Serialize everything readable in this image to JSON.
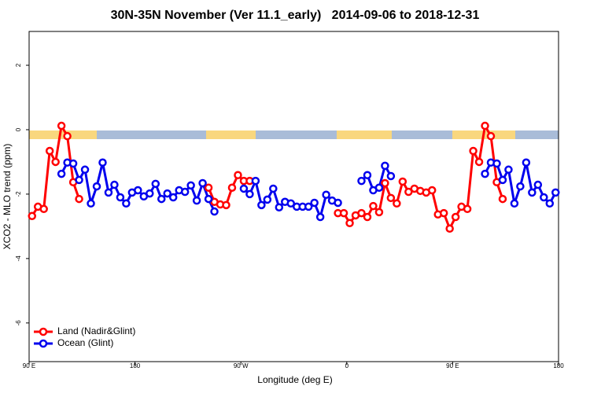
{
  "chart_data": {
    "type": "line",
    "title": "30N-35N November (Ver 11.1_early)   2014-09-06 to 2018-12-31",
    "xlabel": "Longitude (deg E)",
    "ylabel": "XCO2 - MLO trend (ppm)",
    "x": [
      92.5,
      97.5,
      102.5,
      107.5,
      112.5,
      117.5,
      122.5,
      127.5,
      132.5,
      137.5,
      142.5,
      147.5,
      152.5,
      157.5,
      162.5,
      167.5,
      172.5,
      177.5,
      182.5,
      187.5,
      192.5,
      197.5,
      202.5,
      207.5,
      212.5,
      217.5,
      222.5,
      227.5,
      232.5,
      237.5,
      242.5,
      247.5,
      252.5,
      257.5,
      262.5,
      267.5,
      272.5,
      277.5,
      282.5,
      287.5,
      292.5,
      297.5,
      302.5,
      307.5,
      312.5,
      317.5,
      322.5,
      327.5,
      332.5,
      337.5,
      342.5,
      347.5,
      352.5,
      357.5,
      362.5,
      367.5,
      372.5,
      377.5,
      382.5,
      387.5,
      392.5,
      397.5,
      402.5,
      407.5,
      412.5,
      417.5,
      422.5,
      427.5,
      432.5,
      437.5,
      442.5,
      447.5,
      452.5,
      457.5,
      462.5,
      467.5,
      472.5,
      477.5,
      482.5,
      487.5,
      492.5,
      497.5,
      502.5,
      507.5,
      512.5,
      517.5,
      522.5,
      527.5,
      532.5,
      537.5
    ],
    "series": [
      {
        "name": "Land (Nadir&Glint)",
        "color": "#ff0000",
        "values": [
          -2.68,
          -2.39,
          -2.46,
          -0.66,
          -1.0,
          0.12,
          -0.2,
          -1.63,
          -2.15,
          null,
          null,
          null,
          null,
          null,
          null,
          null,
          null,
          null,
          null,
          null,
          null,
          null,
          null,
          null,
          null,
          null,
          null,
          null,
          null,
          null,
          -1.8,
          -2.24,
          -2.32,
          -2.34,
          -1.8,
          -1.41,
          -1.59,
          -1.59,
          null,
          null,
          null,
          null,
          null,
          null,
          null,
          null,
          null,
          null,
          null,
          null,
          null,
          null,
          -2.59,
          -2.59,
          -2.9,
          -2.66,
          -2.59,
          -2.71,
          -2.37,
          -2.56,
          -1.66,
          -2.12,
          -2.29,
          -1.61,
          -1.93,
          -1.83,
          -1.9,
          -1.95,
          -1.88,
          -2.63,
          -2.59,
          -3.07,
          -2.71,
          -2.39,
          -2.46,
          -0.66,
          -1.0,
          0.12,
          -0.2,
          -1.63,
          -2.15,
          null,
          null,
          null,
          null,
          null,
          null,
          null,
          null,
          null
        ]
      },
      {
        "name": "Ocean (Glint)",
        "color": "#0000ee",
        "values": [
          null,
          null,
          null,
          null,
          null,
          -1.37,
          -1.02,
          -1.05,
          -1.56,
          -1.24,
          -2.29,
          -1.76,
          -1.02,
          -1.95,
          -1.71,
          -2.1,
          -2.29,
          -1.95,
          -1.88,
          -2.07,
          -1.98,
          -1.68,
          -2.15,
          -1.98,
          -2.1,
          -1.88,
          -1.93,
          -1.73,
          -2.2,
          -1.66,
          -2.15,
          -2.54,
          null,
          null,
          null,
          null,
          -1.83,
          -2.0,
          -1.59,
          -2.34,
          -2.17,
          -1.83,
          -2.41,
          -2.24,
          -2.29,
          -2.39,
          -2.39,
          -2.39,
          -2.27,
          -2.71,
          -2.02,
          -2.2,
          -2.27,
          null,
          null,
          null,
          -1.59,
          -1.41,
          -1.88,
          -1.8,
          -1.12,
          -1.44,
          null,
          null,
          null,
          null,
          null,
          null,
          null,
          null,
          null,
          null,
          null,
          null,
          null,
          null,
          null,
          -1.37,
          -1.02,
          -1.05,
          -1.56,
          -1.24,
          -2.29,
          -1.76,
          -1.02,
          -1.95,
          -1.71,
          -2.1,
          -2.29,
          -1.95
        ]
      }
    ],
    "xlim": [
      90,
      540
    ],
    "xticks": [
      {
        "value": 90,
        "label": "90 E"
      },
      180,
      {
        "value": 270,
        "label": "90 W"
      },
      {
        "value": 360,
        "label": "0"
      },
      {
        "value": 450,
        "label": "90 E"
      },
      {
        "value": 540,
        "label": "180"
      }
    ],
    "ylim": [
      -7.2,
      3.05
    ],
    "yticks": [
      -6,
      -4,
      -2,
      0,
      2
    ],
    "legend": "lower left"
  }
}
